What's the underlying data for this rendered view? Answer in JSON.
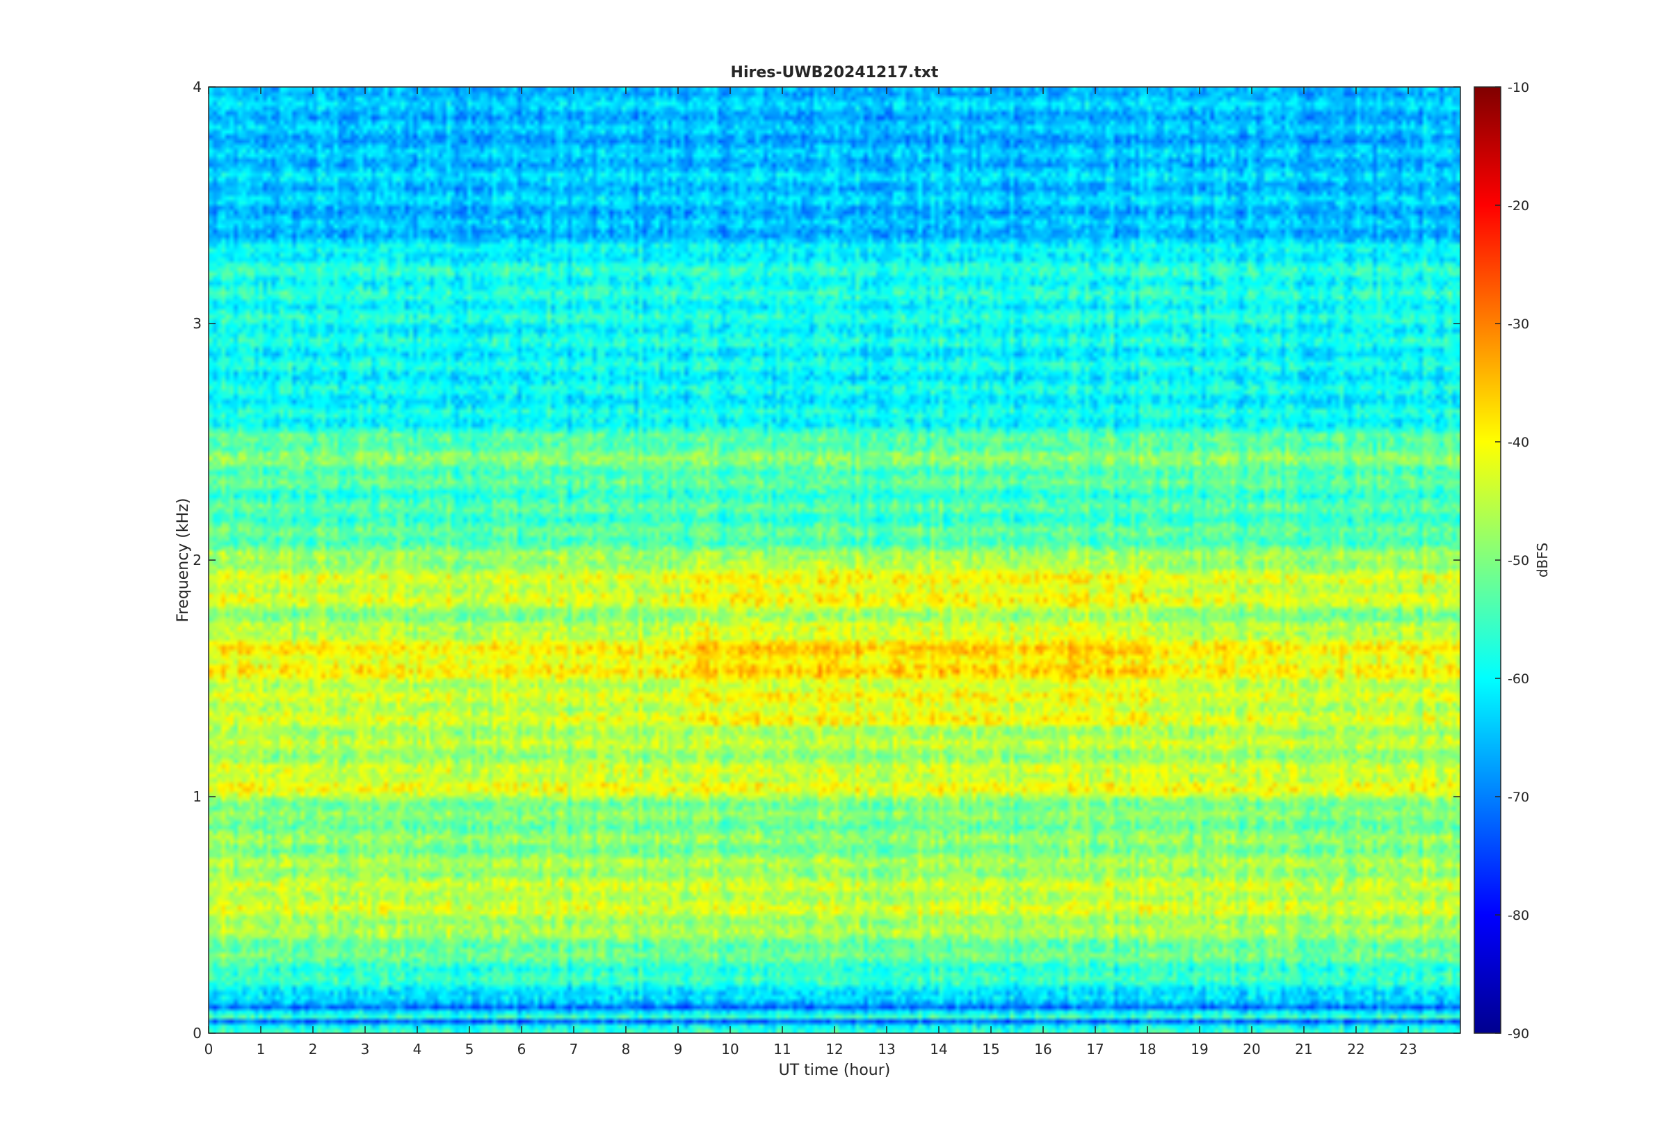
{
  "chart_data": {
    "type": "heatmap",
    "title": "Hires-UWB20241217.txt",
    "xlabel": "UT time (hour)",
    "ylabel": "Frequency (kHz)",
    "xlim": [
      0,
      24
    ],
    "ylim": [
      0,
      4
    ],
    "x_ticks": [
      "0",
      "1",
      "2",
      "3",
      "4",
      "5",
      "6",
      "7",
      "8",
      "9",
      "10",
      "11",
      "12",
      "13",
      "14",
      "15",
      "16",
      "17",
      "18",
      "19",
      "20",
      "21",
      "22",
      "23"
    ],
    "y_ticks": [
      "0",
      "1",
      "2",
      "3",
      "4"
    ],
    "colorbar": {
      "label": "dBFS",
      "range": [
        -90,
        -10
      ],
      "ticks": [
        "-10",
        "-20",
        "-30",
        "-40",
        "-50",
        "-60",
        "-70",
        "-80",
        "-90"
      ],
      "colormap": "jet"
    },
    "band_profile": [
      {
        "f": 0.02,
        "level": -58
      },
      {
        "f": 0.05,
        "level": -72
      },
      {
        "f": 0.08,
        "level": -44
      },
      {
        "f": 0.1,
        "level": -76
      },
      {
        "f": 0.15,
        "level": -62
      },
      {
        "f": 0.25,
        "level": -56
      },
      {
        "f": 0.35,
        "level": -52
      },
      {
        "f": 0.45,
        "level": -47
      },
      {
        "f": 0.55,
        "level": -44
      },
      {
        "f": 0.65,
        "level": -46
      },
      {
        "f": 0.75,
        "level": -49
      },
      {
        "f": 0.85,
        "level": -50
      },
      {
        "f": 0.95,
        "level": -51
      },
      {
        "f": 1.05,
        "level": -41
      },
      {
        "f": 1.15,
        "level": -47
      },
      {
        "f": 1.25,
        "level": -46
      },
      {
        "f": 1.35,
        "level": -44
      },
      {
        "f": 1.45,
        "level": -45
      },
      {
        "f": 1.55,
        "level": -40
      },
      {
        "f": 1.65,
        "level": -41
      },
      {
        "f": 1.75,
        "level": -50
      },
      {
        "f": 1.85,
        "level": -43
      },
      {
        "f": 1.95,
        "level": -45
      },
      {
        "f": 2.1,
        "level": -54
      },
      {
        "f": 2.3,
        "level": -55
      },
      {
        "f": 2.45,
        "level": -50
      },
      {
        "f": 2.6,
        "level": -60
      },
      {
        "f": 2.8,
        "level": -60
      },
      {
        "f": 3.0,
        "level": -59
      },
      {
        "f": 3.25,
        "level": -58
      },
      {
        "f": 3.4,
        "level": -66
      },
      {
        "f": 3.6,
        "level": -64
      },
      {
        "f": 3.8,
        "level": -66
      },
      {
        "f": 4.0,
        "level": -64
      }
    ]
  }
}
